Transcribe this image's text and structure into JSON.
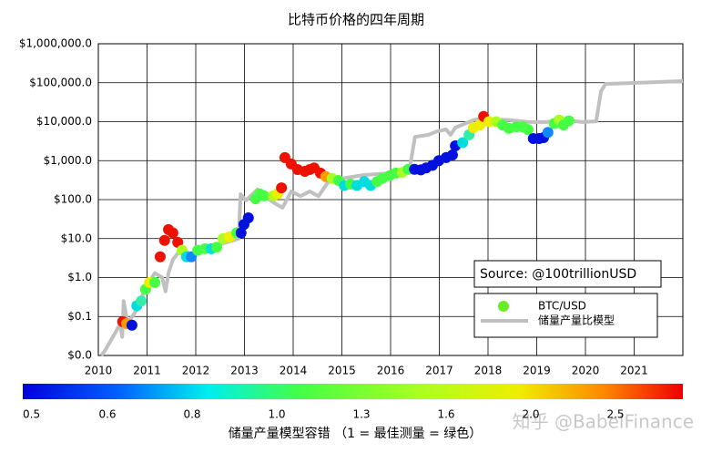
{
  "chart_data": {
    "type": "scatter",
    "title": "比特币价格的四年周期",
    "source": "Source: @100trillionUSD",
    "watermark": "知乎 @BabelFinance",
    "log_y": true,
    "grid": true,
    "xlim": [
      2010,
      2022
    ],
    "xticks": [
      2010,
      2011,
      2012,
      2013,
      2014,
      2015,
      2016,
      2017,
      2018,
      2019,
      2020,
      2021
    ],
    "ylim": [
      0.01,
      1000000
    ],
    "yticks": [
      {
        "value": 0.01,
        "label": "$0.0"
      },
      {
        "value": 0.1,
        "label": "$0.1"
      },
      {
        "value": 1,
        "label": "$1.0"
      },
      {
        "value": 10,
        "label": "$10.0"
      },
      {
        "value": 100,
        "label": "$100.0"
      },
      {
        "value": 1000,
        "label": "$1,000.0"
      },
      {
        "value": 10000,
        "label": "$10,000.0"
      },
      {
        "value": 100000,
        "label": "$100,000.0"
      },
      {
        "value": 1000000,
        "label": "$1,000,000.0"
      }
    ],
    "series": [
      {
        "name": "BTC/USD",
        "kind": "scatter",
        "color": "#66ee22",
        "x": [
          2010.5,
          2010.58,
          2010.69,
          2010.79,
          2010.88,
          2010.97,
          2011.05,
          2011.16,
          2011.27,
          2011.36,
          2011.44,
          2011.53,
          2011.63,
          2011.72,
          2011.81,
          2011.91,
          2012.04,
          2012.19,
          2012.32,
          2012.43,
          2012.56,
          2012.69,
          2012.84,
          2012.93,
          2012.99,
          2013.08,
          2013.23,
          2013.31,
          2013.4,
          2013.59,
          2013.68,
          2013.76,
          2013.83,
          2013.96,
          2014.09,
          2014.24,
          2014.34,
          2014.43,
          2014.56,
          2014.67,
          2014.8,
          2014.93,
          2015.05,
          2015.18,
          2015.31,
          2015.46,
          2015.59,
          2015.72,
          2015.83,
          2015.98,
          2016.11,
          2016.24,
          2016.36,
          2016.49,
          2016.62,
          2016.73,
          2016.86,
          2016.99,
          2017.14,
          2017.27,
          2017.33,
          2017.48,
          2017.61,
          2017.7,
          2017.83,
          2017.91,
          2018.02,
          2018.17,
          2018.3,
          2018.43,
          2018.58,
          2018.71,
          2018.82,
          2018.93,
          2019.05,
          2019.14,
          2019.23,
          2019.36,
          2019.46,
          2019.55,
          2019.66
        ],
        "values": [
          0.074,
          0.066,
          0.06,
          0.19,
          0.25,
          0.5,
          0.75,
          0.75,
          3.4,
          9,
          17,
          14,
          8,
          5,
          3.4,
          3.4,
          5,
          5.5,
          5.5,
          6,
          10,
          11,
          14,
          14,
          23,
          34,
          105,
          140,
          125,
          125,
          140,
          200,
          1200,
          820,
          590,
          530,
          590,
          650,
          480,
          390,
          350,
          310,
          230,
          250,
          230,
          290,
          230,
          290,
          350,
          410,
          480,
          500,
          600,
          600,
          580,
          650,
          760,
          1000,
          1200,
          1400,
          2400,
          2900,
          4600,
          7000,
          8200,
          13600,
          10000,
          10000,
          8200,
          6700,
          7400,
          7400,
          6300,
          3700,
          3700,
          3900,
          5300,
          9000,
          11000,
          8200,
          10500
        ],
        "colors": [
          "#ee1100",
          "#ff9900",
          "#0011dd",
          "#00dddd",
          "#33eeaa",
          "#44ff44",
          "#eeee00",
          "#44ff44",
          "#ee1100",
          "#ee1100",
          "#ee1100",
          "#ee1100",
          "#ee1100",
          "#aaff22",
          "#00dddd",
          "#1188ff",
          "#44ff44",
          "#44ff44",
          "#00dddd",
          "#44ff44",
          "#aaff22",
          "#eeee00",
          "#44ff44",
          "#0011dd",
          "#0011dd",
          "#0011dd",
          "#44ff44",
          "#44ff44",
          "#44ff44",
          "#aaff22",
          "#eeee00",
          "#ee1100",
          "#ee1100",
          "#ee1100",
          "#ee1100",
          "#ee1100",
          "#ee1100",
          "#ee1100",
          "#ee1100",
          "#ff9900",
          "#aaff22",
          "#44ff44",
          "#00dddd",
          "#44ff44",
          "#00dddd",
          "#00dddd",
          "#00dddd",
          "#44ff44",
          "#44ff44",
          "#44ff44",
          "#44ff44",
          "#aaff22",
          "#44ff44",
          "#0011dd",
          "#0011dd",
          "#0011dd",
          "#0011dd",
          "#0011dd",
          "#0011dd",
          "#0011dd",
          "#0011dd",
          "#00dddd",
          "#33eeaa",
          "#eeee00",
          "#eeee00",
          "#ee1100",
          "#eeee00",
          "#aaff22",
          "#44ff44",
          "#44ff44",
          "#44ff44",
          "#44ff44",
          "#44ff44",
          "#0011dd",
          "#0011dd",
          "#0011dd",
          "#1188ff",
          "#44ff44",
          "#aaff22",
          "#44ff44",
          "#44ff44"
        ]
      },
      {
        "name": "储量产量比模型",
        "kind": "line",
        "color": "#c0c0c0",
        "x": [
          2010.06,
          2010.13,
          2010.32,
          2010.45,
          2010.49,
          2010.52,
          2010.6,
          2010.79,
          2010.97,
          2011.16,
          2011.31,
          2011.38,
          2011.44,
          2011.53,
          2011.72,
          2011.91,
          2012.0,
          2012.47,
          2012.88,
          2012.92,
          2013.03,
          2013.12,
          2013.27,
          2013.4,
          2013.59,
          2013.78,
          2013.96,
          2014.15,
          2014.34,
          2014.52,
          2014.71,
          2015.08,
          2015.46,
          2016.02,
          2016.21,
          2016.39,
          2016.5,
          2016.77,
          2016.95,
          2017.14,
          2017.23,
          2017.33,
          2017.51,
          2017.7,
          2017.89,
          2018.07,
          2018.45,
          2018.82,
          2019.2,
          2019.57,
          2019.94,
          2020.22,
          2020.32,
          2020.41,
          2022.0
        ],
        "values": [
          0.01,
          0.013,
          0.033,
          0.066,
          0.03,
          0.25,
          0.066,
          0.15,
          0.56,
          1.3,
          1.0,
          0.44,
          1.3,
          2.9,
          5.8,
          3.7,
          4.9,
          7,
          10,
          138,
          95,
          123,
          182,
          123,
          85,
          62,
          162,
          123,
          162,
          123,
          275,
          363,
          427,
          479,
          537,
          631,
          4070,
          4570,
          5620,
          6310,
          4570,
          7080,
          8710,
          11000,
          12000,
          11500,
          11000,
          9800,
          9800,
          11000,
          9800,
          10200,
          60000,
          93000,
          110000
        ]
      }
    ],
    "colorbar": {
      "label": "储量产量模型容错 （1 = 最佳测量 = 绿色）",
      "ticks": [
        0.5,
        0.6,
        0.8,
        {
          "value": 1.0,
          "label": "1.0"
        },
        1.3,
        1.6,
        {
          "value": 2.0,
          "label": "2.0"
        },
        2.5
      ]
    }
  }
}
